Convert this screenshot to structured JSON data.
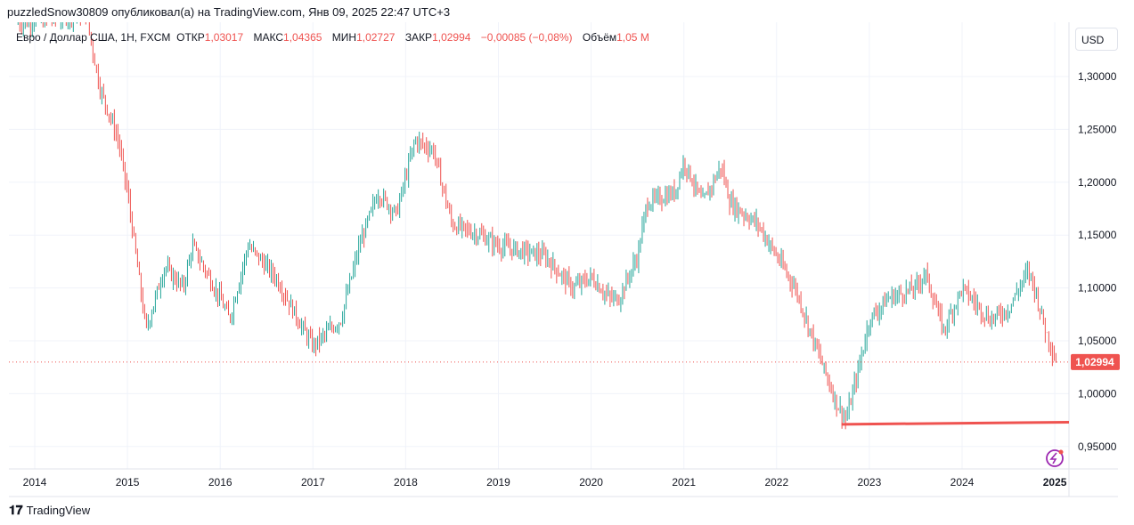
{
  "header": {
    "published": "puzzledSnow30809 опубликовал(а) на TradingView.com, Янв 09, 2025 22:47 UTC+3"
  },
  "legend": {
    "symbol": "Евро / Доллар США, 1Н, FXCM",
    "open_label": "ОТКР",
    "open": "1,03017",
    "high_label": "МАКС",
    "high": "1,04365",
    "low_label": "МИН",
    "low": "1,02727",
    "close_label": "ЗАКР",
    "close": "1,02994",
    "change": "−0,00085 (−0,08%)",
    "volume_label": "Объём",
    "volume": "1,05 M"
  },
  "currency": "USD",
  "footer": {
    "brand": "TradingView"
  },
  "chart_data": {
    "type": "ohlc",
    "title": "EUR/USD 1W",
    "ylim": [
      0.93,
      1.38
    ],
    "y_ticks": [
      "1,30000",
      "1,25000",
      "1,20000",
      "1,15000",
      "1,10000",
      "1,05000",
      "1,00000",
      "0,95000"
    ],
    "y_tick_values": [
      1.3,
      1.25,
      1.2,
      1.15,
      1.1,
      1.05,
      1.0,
      0.95
    ],
    "x_ticks": [
      "2014",
      "2015",
      "2016",
      "2017",
      "2018",
      "2019",
      "2020",
      "2021",
      "2022",
      "2023",
      "2024",
      "2025"
    ],
    "last_price": 1.02994,
    "last_price_label": "1,02994",
    "support_line": {
      "from": [
        2022.7,
        0.971
      ],
      "to": [
        2025.15,
        0.973
      ]
    },
    "path": [
      [
        2013.8,
        1.35
      ],
      [
        2014.55,
        1.36
      ],
      [
        2014.7,
        1.29
      ],
      [
        2014.9,
        1.24
      ],
      [
        2015.0,
        1.19
      ],
      [
        2015.2,
        1.06
      ],
      [
        2015.4,
        1.12
      ],
      [
        2015.6,
        1.1
      ],
      [
        2015.7,
        1.14
      ],
      [
        2016.0,
        1.09
      ],
      [
        2016.1,
        1.07
      ],
      [
        2016.3,
        1.14
      ],
      [
        2016.6,
        1.11
      ],
      [
        2016.9,
        1.06
      ],
      [
        2017.0,
        1.045
      ],
      [
        2017.3,
        1.07
      ],
      [
        2017.5,
        1.14
      ],
      [
        2017.7,
        1.19
      ],
      [
        2017.9,
        1.17
      ],
      [
        2018.1,
        1.24
      ],
      [
        2018.3,
        1.23
      ],
      [
        2018.5,
        1.16
      ],
      [
        2018.8,
        1.15
      ],
      [
        2019.0,
        1.14
      ],
      [
        2019.5,
        1.13
      ],
      [
        2019.8,
        1.1
      ],
      [
        2020.0,
        1.11
      ],
      [
        2020.2,
        1.09
      ],
      [
        2020.3,
        1.09
      ],
      [
        2020.5,
        1.13
      ],
      [
        2020.6,
        1.18
      ],
      [
        2020.9,
        1.19
      ],
      [
        2021.0,
        1.22
      ],
      [
        2021.2,
        1.18
      ],
      [
        2021.4,
        1.215
      ],
      [
        2021.5,
        1.18
      ],
      [
        2021.8,
        1.16
      ],
      [
        2022.0,
        1.13
      ],
      [
        2022.2,
        1.1
      ],
      [
        2022.4,
        1.05
      ],
      [
        2022.65,
        0.99
      ],
      [
        2022.75,
        0.975
      ],
      [
        2022.9,
        1.03
      ],
      [
        2023.0,
        1.07
      ],
      [
        2023.2,
        1.09
      ],
      [
        2023.5,
        1.1
      ],
      [
        2023.6,
        1.115
      ],
      [
        2023.8,
        1.06
      ],
      [
        2024.0,
        1.1
      ],
      [
        2024.3,
        1.07
      ],
      [
        2024.5,
        1.08
      ],
      [
        2024.7,
        1.115
      ],
      [
        2024.75,
        1.11
      ],
      [
        2024.9,
        1.06
      ],
      [
        2025.02,
        1.03
      ]
    ]
  }
}
